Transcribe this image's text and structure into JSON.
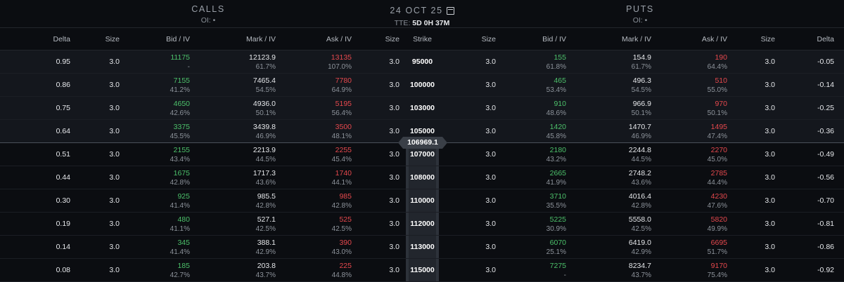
{
  "header": {
    "calls_title": "CALLS",
    "calls_oi": "OI: •",
    "puts_title": "PUTS",
    "puts_oi": "OI: •",
    "date": "24 OCT 25",
    "tte_label": "TTE:",
    "tte_value": "5D 0H 37M"
  },
  "columns": {
    "delta": "Delta",
    "size": "Size",
    "bid_iv": "Bid / IV",
    "mark_iv": "Mark / IV",
    "ask_iv": "Ask / IV",
    "strike": "Strike"
  },
  "index_price": "106969.1",
  "colors": {
    "bid": "#4cc06a",
    "ask": "#e5484d",
    "background": "#0b0d11"
  },
  "rows": [
    {
      "strike": "95000",
      "call": {
        "delta": "0.95",
        "size": "3.0",
        "bid": "11175",
        "bid_iv": "-",
        "mark": "12123.9",
        "mark_iv": "61.7%",
        "ask": "13135",
        "ask_iv": "107.0%",
        "ask_size": "3.0"
      },
      "put": {
        "bid_size": "3.0",
        "bid": "155",
        "bid_iv": "61.8%",
        "mark": "154.9",
        "mark_iv": "61.7%",
        "ask": "190",
        "ask_iv": "64.4%",
        "size": "3.0",
        "delta": "-0.05"
      }
    },
    {
      "strike": "100000",
      "call": {
        "delta": "0.86",
        "size": "3.0",
        "bid": "7155",
        "bid_iv": "41.2%",
        "mark": "7465.4",
        "mark_iv": "54.5%",
        "ask": "7780",
        "ask_iv": "64.9%",
        "ask_size": "3.0"
      },
      "put": {
        "bid_size": "3.0",
        "bid": "465",
        "bid_iv": "53.4%",
        "mark": "496.3",
        "mark_iv": "54.5%",
        "ask": "510",
        "ask_iv": "55.0%",
        "size": "3.0",
        "delta": "-0.14"
      }
    },
    {
      "strike": "103000",
      "call": {
        "delta": "0.75",
        "size": "3.0",
        "bid": "4650",
        "bid_iv": "42.6%",
        "mark": "4936.0",
        "mark_iv": "50.1%",
        "ask": "5195",
        "ask_iv": "56.4%",
        "ask_size": "3.0"
      },
      "put": {
        "bid_size": "3.0",
        "bid": "910",
        "bid_iv": "48.6%",
        "mark": "966.9",
        "mark_iv": "50.1%",
        "ask": "970",
        "ask_iv": "50.1%",
        "size": "3.0",
        "delta": "-0.25"
      }
    },
    {
      "strike": "105000",
      "call": {
        "delta": "0.64",
        "size": "3.0",
        "bid": "3375",
        "bid_iv": "45.5%",
        "mark": "3439.8",
        "mark_iv": "46.9%",
        "ask": "3500",
        "ask_iv": "48.1%",
        "ask_size": "3.0"
      },
      "put": {
        "bid_size": "3.0",
        "bid": "1420",
        "bid_iv": "45.8%",
        "mark": "1470.7",
        "mark_iv": "46.9%",
        "ask": "1495",
        "ask_iv": "47.4%",
        "size": "3.0",
        "delta": "-0.36"
      }
    },
    {
      "strike": "107000",
      "call": {
        "delta": "0.51",
        "size": "3.0",
        "bid": "2155",
        "bid_iv": "43.4%",
        "mark": "2213.9",
        "mark_iv": "44.5%",
        "ask": "2255",
        "ask_iv": "45.4%",
        "ask_size": "3.0"
      },
      "put": {
        "bid_size": "3.0",
        "bid": "2180",
        "bid_iv": "43.2%",
        "mark": "2244.8",
        "mark_iv": "44.5%",
        "ask": "2270",
        "ask_iv": "45.0%",
        "size": "3.0",
        "delta": "-0.49"
      }
    },
    {
      "strike": "108000",
      "call": {
        "delta": "0.44",
        "size": "3.0",
        "bid": "1675",
        "bid_iv": "42.8%",
        "mark": "1717.3",
        "mark_iv": "43.6%",
        "ask": "1740",
        "ask_iv": "44.1%",
        "ask_size": "3.0"
      },
      "put": {
        "bid_size": "3.0",
        "bid": "2665",
        "bid_iv": "41.9%",
        "mark": "2748.2",
        "mark_iv": "43.6%",
        "ask": "2785",
        "ask_iv": "44.4%",
        "size": "3.0",
        "delta": "-0.56"
      }
    },
    {
      "strike": "110000",
      "call": {
        "delta": "0.30",
        "size": "3.0",
        "bid": "925",
        "bid_iv": "41.4%",
        "mark": "985.5",
        "mark_iv": "42.8%",
        "ask": "985",
        "ask_iv": "42.8%",
        "ask_size": "3.0"
      },
      "put": {
        "bid_size": "3.0",
        "bid": "3710",
        "bid_iv": "35.5%",
        "mark": "4016.4",
        "mark_iv": "42.8%",
        "ask": "4230",
        "ask_iv": "47.6%",
        "size": "3.0",
        "delta": "-0.70"
      }
    },
    {
      "strike": "112000",
      "call": {
        "delta": "0.19",
        "size": "3.0",
        "bid": "480",
        "bid_iv": "41.1%",
        "mark": "527.1",
        "mark_iv": "42.5%",
        "ask": "525",
        "ask_iv": "42.5%",
        "ask_size": "3.0"
      },
      "put": {
        "bid_size": "3.0",
        "bid": "5225",
        "bid_iv": "30.9%",
        "mark": "5558.0",
        "mark_iv": "42.5%",
        "ask": "5820",
        "ask_iv": "49.9%",
        "size": "3.0",
        "delta": "-0.81"
      }
    },
    {
      "strike": "113000",
      "call": {
        "delta": "0.14",
        "size": "3.0",
        "bid": "345",
        "bid_iv": "41.4%",
        "mark": "388.1",
        "mark_iv": "42.9%",
        "ask": "390",
        "ask_iv": "43.0%",
        "ask_size": "3.0"
      },
      "put": {
        "bid_size": "3.0",
        "bid": "6070",
        "bid_iv": "25.1%",
        "mark": "6419.0",
        "mark_iv": "42.9%",
        "ask": "6695",
        "ask_iv": "51.7%",
        "size": "3.0",
        "delta": "-0.86"
      }
    },
    {
      "strike": "115000",
      "call": {
        "delta": "0.08",
        "size": "3.0",
        "bid": "185",
        "bid_iv": "42.7%",
        "mark": "203.8",
        "mark_iv": "43.7%",
        "ask": "225",
        "ask_iv": "44.8%",
        "ask_size": "3.0"
      },
      "put": {
        "bid_size": "3.0",
        "bid": "7275",
        "bid_iv": "-",
        "mark": "8234.7",
        "mark_iv": "43.7%",
        "ask": "9170",
        "ask_iv": "75.4%",
        "size": "3.0",
        "delta": "-0.92"
      }
    }
  ]
}
